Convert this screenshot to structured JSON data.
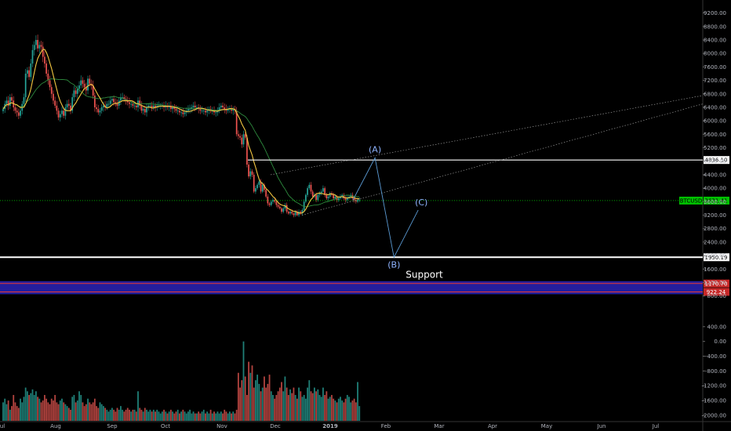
{
  "chart_data": {
    "type": "candlestick",
    "symbol": "BTCUSD",
    "last_price": "3631.41",
    "x_tick_labels": [
      "Jul",
      "Aug",
      "Sep",
      "Oct",
      "Nov",
      "Dec",
      "2019",
      "Feb",
      "Mar",
      "Apr",
      "May",
      "Jun",
      "Jul"
    ],
    "price_axis": {
      "ticks": [
        "9200.00",
        "8800.00",
        "8400.00",
        "8000.00",
        "7600.00",
        "7200.00",
        "6800.00",
        "6400.00",
        "6000.00",
        "5600.00",
        "5200.00",
        "4800.00",
        "4400.00",
        "4000.00",
        "3600.00",
        "3200.00",
        "2800.00",
        "2400.00",
        "2000.00",
        "1600.00",
        "1200.00",
        "800.00"
      ],
      "ylim": [
        700,
        9400
      ]
    },
    "volume_axis": {
      "ticks": [
        "400.00",
        "0.00",
        "-400.00",
        "-800.00",
        "-1200.00",
        "-1600.00",
        "-2000.00"
      ],
      "ylim": [
        -2150,
        800
      ]
    },
    "levels": [
      {
        "name": "resistance",
        "value": 4836.1,
        "label": "4836.10",
        "color": "#ffffff"
      },
      {
        "name": "btcusd",
        "value": 3631.41,
        "label": "BTCUSD",
        "color": "#00ff00"
      },
      {
        "name": "support",
        "value": 1950.19,
        "label": "1950.19",
        "color": "#ffffff"
      }
    ],
    "band": [
      {
        "value": 1170.7,
        "label": "1170.70",
        "color": "#c62828"
      },
      {
        "value": 922.24,
        "label": "922.24",
        "color": "#c62828"
      }
    ],
    "wave_points": [
      {
        "label": "(A)",
        "x_day": 215,
        "y": 4900
      },
      {
        "label": "(B)",
        "x_day": 226,
        "y": 1950
      },
      {
        "label": "(C)",
        "x_day": 240,
        "y": 3350
      }
    ],
    "support_text": "Support",
    "candle_series": {
      "start": "2018-06-29",
      "closes": [
        6350,
        6500,
        6600,
        6450,
        6700,
        6600,
        6400,
        6300,
        6250,
        6150,
        6300,
        6500,
        6700,
        7400,
        7500,
        7300,
        7700,
        8100,
        8250,
        8400,
        8150,
        8250,
        8200,
        7900,
        7700,
        7400,
        7200,
        7000,
        6800,
        6600,
        6450,
        6300,
        6100,
        6200,
        6300,
        6150,
        6400,
        6500,
        6450,
        6300,
        6700,
        6900,
        6800,
        6950,
        7050,
        7200,
        7100,
        7000,
        6900,
        7250,
        7100,
        7050,
        6750,
        6400,
        6350,
        6250,
        6300,
        6400,
        6450,
        6400,
        6500,
        6500,
        6600,
        6650,
        6550,
        6500,
        6450,
        6600,
        6700,
        6700,
        6650,
        6600,
        6550,
        6500,
        6500,
        6450,
        6450,
        6400,
        6600,
        6450,
        6300,
        6350,
        6250,
        6400,
        6450,
        6450,
        6400,
        6450,
        6400,
        6450,
        6450,
        6450,
        6450,
        6400,
        6450,
        6400,
        6450,
        6350,
        6400,
        6350,
        6300,
        6300,
        6250,
        6250,
        6200,
        6250,
        6300,
        6350,
        6350,
        6400,
        6450,
        6400,
        6400,
        6350,
        6300,
        6300,
        6300,
        6250,
        6300,
        6350,
        6300,
        6300,
        6250,
        6250,
        6300,
        6400,
        6450,
        6400,
        6350,
        6300,
        6350,
        6350,
        6300,
        6350,
        6300,
        5600,
        5550,
        5500,
        5300,
        5600,
        5500,
        4700,
        4350,
        4500,
        4400,
        3900,
        4000,
        4100,
        4200,
        3900,
        4100,
        3950,
        3750,
        3550,
        3500,
        3600,
        3650,
        3600,
        3500,
        3450,
        3400,
        3300,
        3400,
        3500,
        3300,
        3250,
        3300,
        3250,
        3200,
        3300,
        3200,
        3300,
        3250,
        3350,
        3600,
        3800,
        4000,
        4100,
        3900,
        3750,
        3800,
        3650,
        3800,
        3850,
        3900,
        4000,
        3800,
        3700,
        3750,
        3850,
        3800,
        3700,
        3750,
        3650,
        3700,
        3750,
        3800,
        3700,
        3650,
        3700,
        3750,
        3800,
        3700,
        3650,
        3600,
        3650,
        3650
      ],
      "volumes": [
        500,
        600,
        450,
        550,
        300,
        400,
        700,
        500,
        400,
        350,
        600,
        500,
        650,
        900,
        800,
        700,
        750,
        850,
        700,
        800,
        650,
        600,
        500,
        550,
        700,
        600,
        500,
        450,
        600,
        550,
        700,
        500,
        450,
        550,
        600,
        500,
        450,
        400,
        350,
        300,
        650,
        700,
        500,
        550,
        800,
        700,
        500,
        400,
        450,
        600,
        500,
        450,
        500,
        600,
        400,
        350,
        500,
        450,
        400,
        350,
        300,
        250,
        300,
        350,
        300,
        250,
        350,
        300,
        400,
        300,
        250,
        300,
        350,
        300,
        250,
        300,
        300,
        250,
        800,
        350,
        300,
        250,
        350,
        300,
        250,
        300,
        250,
        300,
        250,
        300,
        250,
        200,
        250,
        300,
        250,
        200,
        250,
        300,
        250,
        200,
        250,
        300,
        200,
        250,
        300,
        250,
        200,
        250,
        300,
        200,
        250,
        200,
        200,
        250,
        200,
        250,
        300,
        200,
        250,
        200,
        300,
        200,
        250,
        200,
        250,
        200,
        250,
        200,
        300,
        250,
        200,
        250,
        200,
        250,
        200,
        300,
        1300,
        900,
        1100,
        2150,
        1200,
        700,
        1600,
        1300,
        1500,
        900,
        1100,
        1250,
        1000,
        800,
        900,
        1200,
        900,
        1000,
        1250,
        800,
        700,
        600,
        700,
        800,
        900,
        1050,
        800,
        1200,
        900,
        700,
        850,
        750,
        900,
        700,
        600,
        900,
        800,
        650,
        700,
        600,
        900,
        1100,
        800,
        750,
        900,
        800,
        850,
        700,
        650,
        900,
        700,
        800,
        600,
        650,
        700,
        600,
        550,
        500,
        600,
        650,
        550,
        500,
        600,
        700,
        650,
        500,
        550,
        600,
        500,
        1050,
        400,
        450,
        350
      ]
    }
  }
}
